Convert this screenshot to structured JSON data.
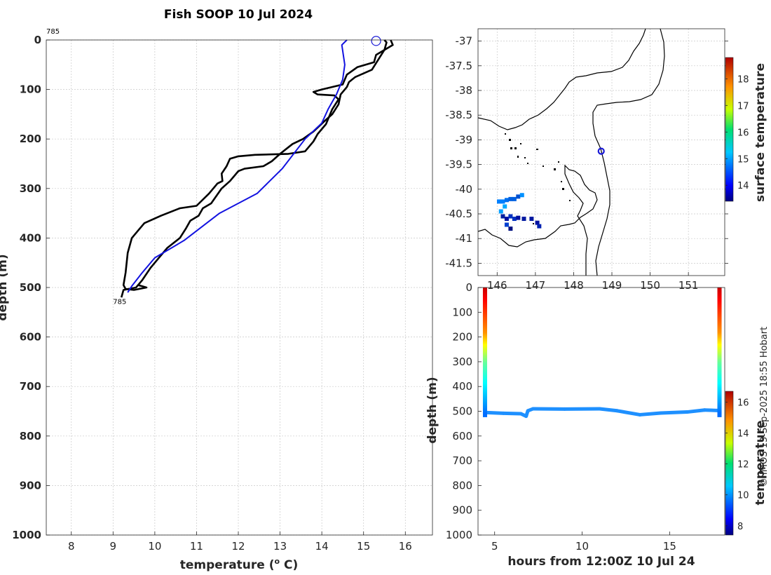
{
  "title": "Fish SOOP 10 Jul 2024",
  "credit": "© IMOS 13-Sep-2025 18:55 Hobart",
  "chart_data": [
    {
      "type": "line",
      "id": "profile",
      "xlabel": "temperature (",
      "xlabel_sup": "o",
      "xlabel_unit": " C)",
      "ylabel": "depth (m)",
      "xlim": [
        7.4,
        16.65
      ],
      "ylim": [
        0,
        1000
      ],
      "xticks": [
        8,
        9,
        10,
        11,
        12,
        13,
        14,
        15,
        16
      ],
      "yticks": [
        0,
        100,
        200,
        300,
        400,
        500,
        600,
        700,
        800,
        900,
        1000
      ],
      "annotations": [
        {
          "text": "785",
          "x": 7.4,
          "y": -20
        },
        {
          "text": "785",
          "x": 9.0,
          "y": 522
        }
      ],
      "marker": {
        "x": 15.3,
        "y": 2,
        "color": "#1a1ad6"
      },
      "series": [
        {
          "name": "profile-down",
          "color": "#000000",
          "points": [
            [
              15.65,
              0
            ],
            [
              15.7,
              10
            ],
            [
              15.3,
              30
            ],
            [
              15.25,
              45
            ],
            [
              14.85,
              55
            ],
            [
              14.6,
              70
            ],
            [
              14.5,
              90
            ],
            [
              14.0,
              100
            ],
            [
              13.8,
              105
            ],
            [
              13.9,
              110
            ],
            [
              14.3,
              112
            ],
            [
              14.4,
              120
            ],
            [
              14.25,
              140
            ],
            [
              14.1,
              170
            ],
            [
              13.9,
              190
            ],
            [
              13.8,
              205
            ],
            [
              13.6,
              225
            ],
            [
              13.2,
              230
            ],
            [
              12.4,
              232
            ],
            [
              12.0,
              235
            ],
            [
              11.8,
              240
            ],
            [
              11.72,
              255
            ],
            [
              11.6,
              270
            ],
            [
              11.62,
              285
            ],
            [
              11.5,
              290
            ],
            [
              11.3,
              310
            ],
            [
              11.0,
              335
            ],
            [
              10.6,
              340
            ],
            [
              10.15,
              355
            ],
            [
              9.75,
              370
            ],
            [
              9.6,
              385
            ],
            [
              9.45,
              400
            ],
            [
              9.35,
              430
            ],
            [
              9.3,
              470
            ],
            [
              9.25,
              495
            ],
            [
              9.3,
              503
            ],
            [
              9.5,
              505
            ],
            [
              9.8,
              500
            ],
            [
              9.6,
              495
            ]
          ]
        },
        {
          "name": "profile-up",
          "color": "#000000",
          "points": [
            [
              9.2,
              520
            ],
            [
              9.25,
              505
            ],
            [
              9.55,
              500
            ],
            [
              9.7,
              485
            ],
            [
              9.9,
              460
            ],
            [
              10.1,
              440
            ],
            [
              10.3,
              420
            ],
            [
              10.6,
              400
            ],
            [
              10.75,
              380
            ],
            [
              10.85,
              365
            ],
            [
              11.05,
              355
            ],
            [
              11.15,
              340
            ],
            [
              11.35,
              330
            ],
            [
              11.6,
              300
            ],
            [
              11.8,
              285
            ],
            [
              12.0,
              265
            ],
            [
              12.15,
              260
            ],
            [
              12.6,
              255
            ],
            [
              12.8,
              245
            ],
            [
              13.0,
              230
            ],
            [
              13.15,
              220
            ],
            [
              13.3,
              210
            ],
            [
              13.55,
              200
            ],
            [
              13.8,
              185
            ],
            [
              14.05,
              165
            ],
            [
              14.25,
              150
            ],
            [
              14.4,
              130
            ],
            [
              14.45,
              110
            ],
            [
              14.6,
              95
            ],
            [
              14.65,
              85
            ],
            [
              14.8,
              75
            ],
            [
              15.2,
              60
            ],
            [
              15.35,
              40
            ],
            [
              15.5,
              20
            ],
            [
              15.55,
              5
            ],
            [
              15.5,
              0
            ]
          ]
        },
        {
          "name": "clim-ref",
          "color": "#1212e0",
          "points": [
            [
              14.6,
              0
            ],
            [
              14.48,
              10
            ],
            [
              14.55,
              50
            ],
            [
              14.5,
              80
            ],
            [
              14.35,
              110
            ],
            [
              14.15,
              140
            ],
            [
              14.0,
              168
            ],
            [
              13.6,
              200
            ],
            [
              13.05,
              260
            ],
            [
              12.45,
              310
            ],
            [
              11.55,
              350
            ],
            [
              10.7,
              405
            ],
            [
              10.0,
              440
            ],
            [
              9.7,
              470
            ],
            [
              9.45,
              497
            ],
            [
              9.35,
              510
            ]
          ]
        }
      ]
    },
    {
      "type": "map",
      "id": "map",
      "colorbar_label": "surface temperature",
      "xlim": [
        145.5,
        151.95
      ],
      "ylim": [
        -41.75,
        -36.75
      ],
      "xticks": [
        146,
        147,
        148,
        149,
        150,
        151
      ],
      "yticks": [
        -37,
        -37.5,
        -38,
        -38.5,
        -39,
        -39.5,
        -40,
        -40.5,
        -41,
        -41.5
      ],
      "cbar_min": 13.4,
      "cbar_max": 18.8,
      "cbar_ticks": [
        14,
        15,
        16,
        17,
        18
      ],
      "marker": {
        "lon": 148.72,
        "lat": -39.23,
        "color": "#1a1ad6"
      }
    },
    {
      "type": "scatter",
      "id": "section",
      "xlabel": "hours from 12:00Z 10 Jul 24",
      "ylabel": "depth (m)",
      "colorbar_label": "temperature",
      "xlim": [
        4.05,
        18.15
      ],
      "ylim": [
        0,
        1000
      ],
      "xticks": [
        5,
        10,
        15
      ],
      "yticks": [
        0,
        100,
        200,
        300,
        400,
        500,
        600,
        700,
        800,
        900,
        1000
      ],
      "cbar_min": 7.4,
      "cbar_max": 16.7,
      "cbar_ticks": [
        8,
        10,
        12,
        14,
        16
      ],
      "track": [
        [
          4.45,
          505
        ],
        [
          5.5,
          508
        ],
        [
          6.5,
          510
        ],
        [
          6.8,
          520
        ],
        [
          6.9,
          498
        ],
        [
          7.2,
          490
        ],
        [
          9.0,
          491
        ],
        [
          11.0,
          490
        ],
        [
          12.0,
          498
        ],
        [
          13.3,
          514
        ],
        [
          14.5,
          507
        ],
        [
          16.0,
          503
        ],
        [
          17.0,
          495
        ],
        [
          17.85,
          497
        ]
      ]
    }
  ]
}
